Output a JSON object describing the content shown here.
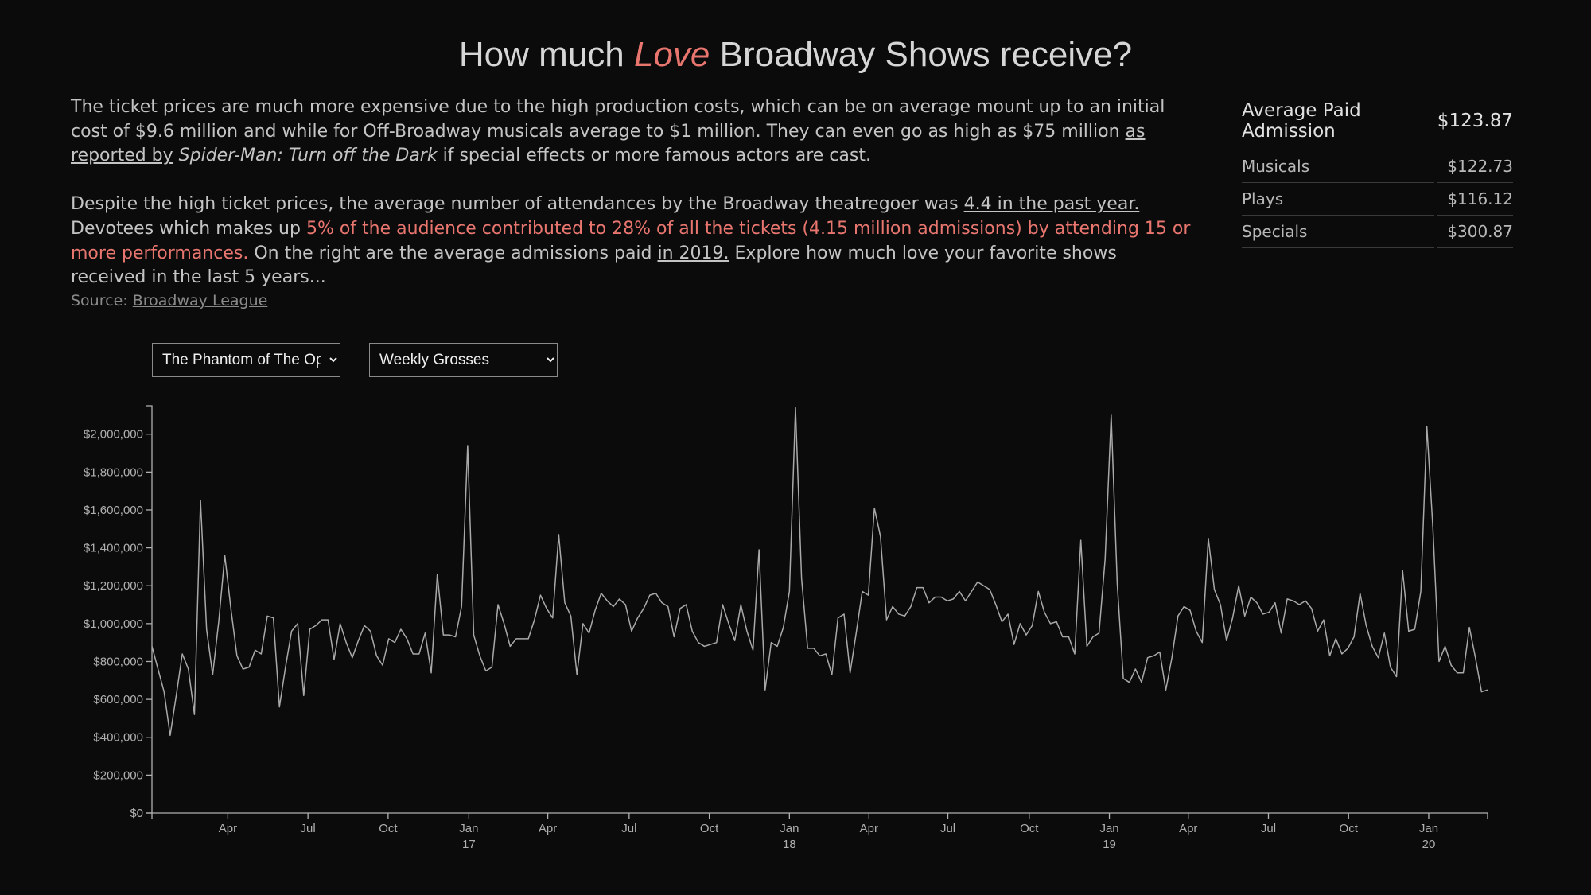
{
  "header": {
    "title": [
      {
        "text": "How much ",
        "style": "plain"
      },
      {
        "text": "Love",
        "style": "italic-highlight"
      },
      {
        "text": " Broadway Shows receive?",
        "style": "plain"
      }
    ]
  },
  "intro": {
    "paragraphs": [
      [
        {
          "text": "The ticket prices are much more expensive due to the high production costs, which can be on average mount up to an initial cost of $9.6 million and while for Off-Broadway musicals average to $1 million. They can even go as high as $75 million ",
          "style": "plain"
        },
        {
          "text": "as reported by",
          "style": "underline"
        },
        {
          "text": " Spider-Man: Turn off the Dark",
          "style": "italic"
        },
        {
          "text": " if special effects or more famous actors are cast.",
          "style": "plain"
        }
      ],
      [
        {
          "text": "Despite the high ticket prices, the average number of attendances by the Broadway theatregoer was ",
          "style": "plain"
        },
        {
          "text": "4.4 in the past year.",
          "style": "underline"
        },
        {
          "text": " Devotees which makes up ",
          "style": "plain"
        },
        {
          "text": "5% of the audience contributed to 28% of all the tickets (4.15 million admissions) by attending 15 or more performances.",
          "style": "highlight"
        },
        {
          "text": " On the right are the average admissions paid ",
          "style": "plain"
        },
        {
          "text": "in 2019.",
          "style": "underline"
        },
        {
          "text": " Explore how much love your favorite shows received in the last 5 years...",
          "style": "plain"
        }
      ]
    ],
    "source_label": "Source:",
    "source_link": "Broadway League"
  },
  "admissions": {
    "header": [
      "Average Paid Admission",
      "$123.87"
    ],
    "rows": [
      [
        "Musicals",
        "$122.73"
      ],
      [
        "Plays",
        "$116.12"
      ],
      [
        "Specials",
        "$300.87"
      ]
    ]
  },
  "controls": {
    "show": {
      "options": [
        "The Phantom of The Opera"
      ]
    },
    "metric": {
      "options": [
        "Weekly Grosses"
      ]
    }
  },
  "chart_data": {
    "type": "line",
    "color": "#a9a9a9",
    "values": [
      880000,
      760000,
      640000,
      410000,
      620000,
      840000,
      760000,
      520000,
      1650000,
      970000,
      730000,
      1010000,
      1360000,
      1080000,
      830000,
      760000,
      770000,
      860000,
      840000,
      1040000,
      1030000,
      560000,
      770000,
      960000,
      1000000,
      620000,
      970000,
      990000,
      1020000,
      1020000,
      810000,
      1000000,
      900000,
      820000,
      910000,
      990000,
      960000,
      830000,
      780000,
      920000,
      900000,
      970000,
      920000,
      840000,
      840000,
      950000,
      740000,
      1260000,
      940000,
      940000,
      930000,
      1090000,
      1940000,
      940000,
      830000,
      750000,
      770000,
      1100000,
      1000000,
      880000,
      920000,
      920000,
      920000,
      1020000,
      1150000,
      1080000,
      1030000,
      1470000,
      1110000,
      1040000,
      730000,
      1000000,
      950000,
      1070000,
      1160000,
      1120000,
      1090000,
      1130000,
      1100000,
      960000,
      1030000,
      1080000,
      1150000,
      1160000,
      1110000,
      1090000,
      930000,
      1080000,
      1100000,
      960000,
      900000,
      880000,
      890000,
      900000,
      1100000,
      1000000,
      910000,
      1100000,
      960000,
      860000,
      1390000,
      650000,
      900000,
      880000,
      980000,
      1170000,
      2140000,
      1240000,
      870000,
      870000,
      830000,
      840000,
      730000,
      1030000,
      1050000,
      740000,
      950000,
      1170000,
      1150000,
      1610000,
      1460000,
      1020000,
      1090000,
      1050000,
      1040000,
      1090000,
      1190000,
      1190000,
      1110000,
      1140000,
      1140000,
      1120000,
      1130000,
      1170000,
      1120000,
      1170000,
      1220000,
      1200000,
      1180000,
      1100000,
      1010000,
      1050000,
      890000,
      1000000,
      940000,
      990000,
      1170000,
      1060000,
      1000000,
      1010000,
      930000,
      930000,
      840000,
      1440000,
      880000,
      930000,
      950000,
      1340000,
      2100000,
      1210000,
      710000,
      690000,
      760000,
      690000,
      820000,
      830000,
      850000,
      650000,
      820000,
      1040000,
      1090000,
      1070000,
      960000,
      900000,
      1450000,
      1180000,
      1100000,
      910000,
      1030000,
      1200000,
      1040000,
      1140000,
      1110000,
      1050000,
      1060000,
      1110000,
      950000,
      1130000,
      1120000,
      1100000,
      1120000,
      1080000,
      960000,
      1020000,
      830000,
      920000,
      840000,
      870000,
      930000,
      1160000,
      990000,
      880000,
      820000,
      950000,
      770000,
      720000,
      1280000,
      960000,
      970000,
      1170000,
      2040000,
      1500000,
      800000,
      880000,
      780000,
      740000,
      740000,
      980000,
      820000,
      640000,
      650000
    ],
    "xlim": [
      0,
      220
    ],
    "xticks": [
      {
        "value": 12.5,
        "label": "Apr"
      },
      {
        "value": 25.7,
        "label": "Jul"
      },
      {
        "value": 38.9,
        "label": "Oct"
      },
      {
        "value": 52.2,
        "label": "Jan",
        "year": "17"
      },
      {
        "value": 65.2,
        "label": "Apr"
      },
      {
        "value": 78.6,
        "label": "Jul"
      },
      {
        "value": 91.8,
        "label": "Oct"
      },
      {
        "value": 105.0,
        "label": "Jan",
        "year": "18"
      },
      {
        "value": 118.1,
        "label": "Apr"
      },
      {
        "value": 131.1,
        "label": "Jul"
      },
      {
        "value": 144.5,
        "label": "Oct"
      },
      {
        "value": 157.7,
        "label": "Jan",
        "year": "19"
      },
      {
        "value": 170.7,
        "label": "Apr"
      },
      {
        "value": 183.9,
        "label": "Jul"
      },
      {
        "value": 197.1,
        "label": "Oct"
      },
      {
        "value": 210.3,
        "label": "Jan",
        "year": "20"
      }
    ],
    "ylim": [
      0,
      2150000
    ],
    "yticks": [
      {
        "value": 0,
        "label": "$0"
      },
      {
        "value": 200000,
        "label": "$200,000"
      },
      {
        "value": 400000,
        "label": "$400,000"
      },
      {
        "value": 600000,
        "label": "$600,000"
      },
      {
        "value": 800000,
        "label": "$800,000"
      },
      {
        "value": 1000000,
        "label": "$1,000,000"
      },
      {
        "value": 1200000,
        "label": "$1,200,000"
      },
      {
        "value": 1400000,
        "label": "$1,400,000"
      },
      {
        "value": 1600000,
        "label": "$1,600,000"
      },
      {
        "value": 1800000,
        "label": "$1,800,000"
      },
      {
        "value": 2000000,
        "label": "$2,000,000"
      }
    ]
  }
}
